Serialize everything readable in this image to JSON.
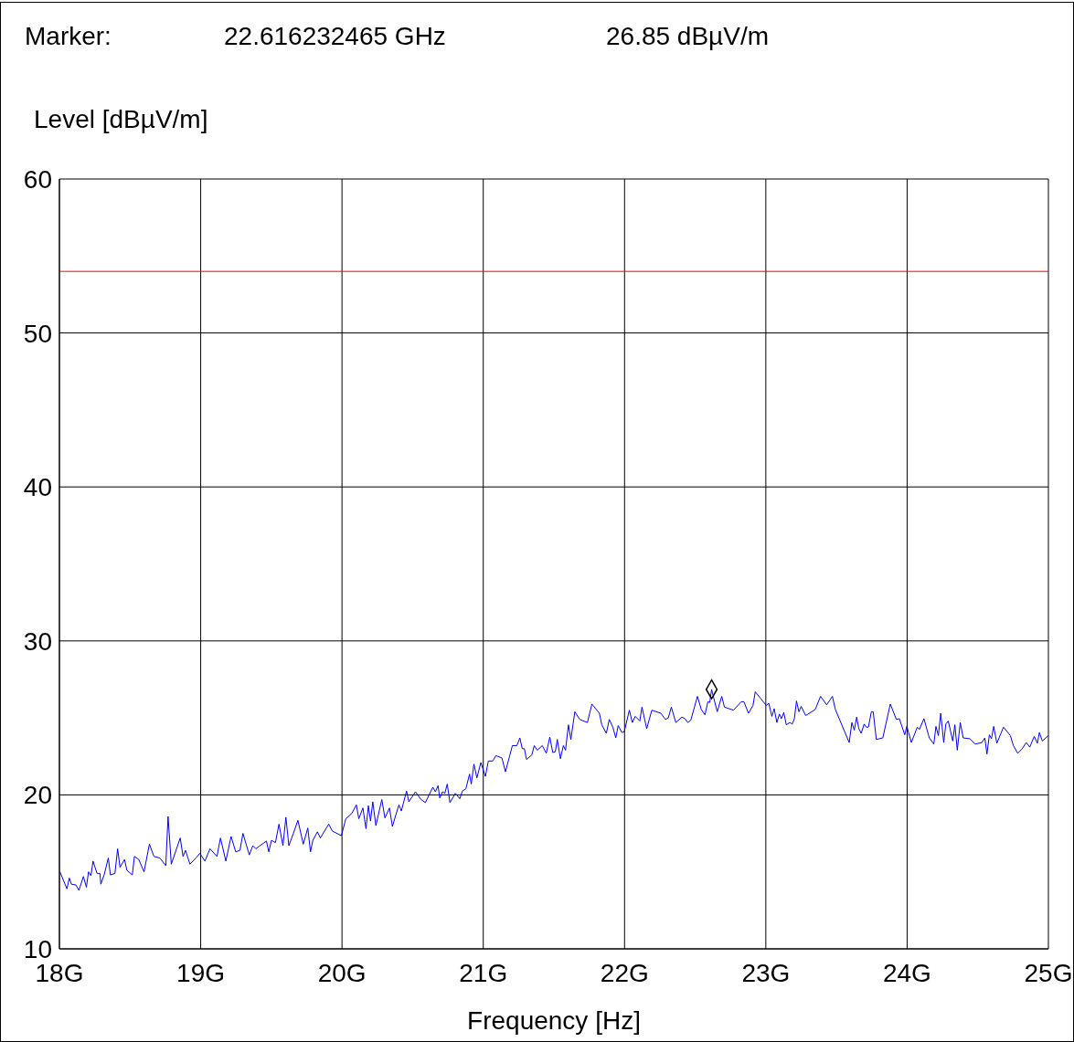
{
  "chart_data": {
    "type": "line",
    "xlabel": "Frequency [Hz]",
    "ylabel": "Level [dBµV/m]",
    "annotations": [
      "Marker:",
      "22.616232465 GHz",
      "26.85 dBµV/m"
    ],
    "xlim": [
      18,
      25
    ],
    "xticks": [
      {
        "value": 18,
        "label": "18G"
      },
      {
        "value": 19,
        "label": "19G"
      },
      {
        "value": 20,
        "label": "20G"
      },
      {
        "value": 21,
        "label": "21G"
      },
      {
        "value": 22,
        "label": "22G"
      },
      {
        "value": 23,
        "label": "23G"
      },
      {
        "value": 24,
        "label": "24G"
      },
      {
        "value": 25,
        "label": "25G"
      }
    ],
    "ylim": [
      10,
      60
    ],
    "yticks": [
      10,
      20,
      30,
      40,
      50,
      60
    ],
    "grid": true,
    "ref_lines": [
      {
        "axis": "y",
        "value": 54,
        "color": "#ff0000"
      }
    ],
    "series": [
      {
        "type": "line",
        "color": "#0000ff",
        "marker": "none",
        "x": [
          18.004,
          18.053,
          18.07,
          18.085,
          18.117,
          18.138,
          18.17,
          18.191,
          18.206,
          18.223,
          18.238,
          18.266,
          18.287,
          18.293,
          18.318,
          18.346,
          18.361,
          18.393,
          18.412,
          18.429,
          18.461,
          18.478,
          18.516,
          18.531,
          18.562,
          18.599,
          18.637,
          18.669,
          18.711,
          18.753,
          18.769,
          18.792,
          18.855,
          18.875,
          18.892,
          18.924,
          18.966,
          18.994,
          19.03,
          19.066,
          19.115,
          19.14,
          19.178,
          19.215,
          19.248,
          19.278,
          19.299,
          19.344,
          19.369,
          19.39,
          19.465,
          19.482,
          19.501,
          19.529,
          19.554,
          19.582,
          19.603,
          19.624,
          19.656,
          19.688,
          19.726,
          19.758,
          19.777,
          19.794,
          19.826,
          19.847,
          19.906,
          19.932,
          19.996,
          20.027,
          20.07,
          20.102,
          20.119,
          20.148,
          20.17,
          20.187,
          20.202,
          20.218,
          20.24,
          20.282,
          20.304,
          20.336,
          20.357,
          20.378,
          20.403,
          20.42,
          20.457,
          20.473,
          20.52,
          20.559,
          20.59,
          20.643,
          20.661,
          20.68,
          20.692,
          20.712,
          20.728,
          20.745,
          20.764,
          20.803,
          20.834,
          20.852,
          20.877,
          20.903,
          20.915,
          20.934,
          20.955,
          20.983,
          21.015,
          21.036,
          21.068,
          21.089,
          21.132,
          21.157,
          21.206,
          21.238,
          21.259,
          21.276,
          21.291,
          21.306,
          21.344,
          21.361,
          21.382,
          21.418,
          21.446,
          21.471,
          21.492,
          21.51,
          21.524,
          21.546,
          21.567,
          21.582,
          21.603,
          21.62,
          21.648,
          21.683,
          21.737,
          21.769,
          21.822,
          21.839,
          21.871,
          21.892,
          21.917,
          21.938,
          21.955,
          21.981,
          21.998,
          22.034,
          22.055,
          22.076,
          22.108,
          22.123,
          22.157,
          22.193,
          22.257,
          22.289,
          22.31,
          22.331,
          22.363,
          22.406,
          22.427,
          22.448,
          22.469,
          22.516,
          22.543,
          22.569,
          22.59,
          22.603,
          22.616,
          22.656,
          22.688,
          22.707,
          22.771,
          22.826,
          22.845,
          22.877,
          22.909,
          22.925,
          22.964,
          23.004,
          23.021,
          23.043,
          23.059,
          23.078,
          23.096,
          23.11,
          23.127,
          23.145,
          23.17,
          23.187,
          23.202,
          23.217,
          23.234,
          23.25,
          23.282,
          23.35,
          23.387,
          23.431,
          23.471,
          23.492,
          23.59,
          23.609,
          23.626,
          23.643,
          23.658,
          23.675,
          23.696,
          23.711,
          23.726,
          23.747,
          23.76,
          23.782,
          23.828,
          23.881,
          23.924,
          23.945,
          23.983,
          23.998,
          24.03,
          24.072,
          24.087,
          24.119,
          24.157,
          24.189,
          24.204,
          24.221,
          24.238,
          24.259,
          24.274,
          24.291,
          24.323,
          24.338,
          24.355,
          24.376,
          24.397,
          24.444,
          24.482,
          24.529,
          24.55,
          24.565,
          24.582,
          24.597,
          24.613,
          24.635,
          24.682,
          24.731,
          24.752,
          24.783,
          24.815,
          24.843,
          24.868,
          24.9,
          24.922,
          24.936,
          24.957,
          25.0
        ],
        "values": [
          15.0,
          13.9,
          14.6,
          14.2,
          14.15,
          13.8,
          14.7,
          14.0,
          15.0,
          14.75,
          15.7,
          14.9,
          14.9,
          14.2,
          14.85,
          15.9,
          14.8,
          14.9,
          16.5,
          15.3,
          15.8,
          15.1,
          14.8,
          16.0,
          15.8,
          15.0,
          16.8,
          16.0,
          15.9,
          15.4,
          18.6,
          15.5,
          17.2,
          16.0,
          16.4,
          15.5,
          15.9,
          16.2,
          15.7,
          16.5,
          16.0,
          17.2,
          15.7,
          17.3,
          16.3,
          16.4,
          17.5,
          16.1,
          16.7,
          16.5,
          17.0,
          16.3,
          17.05,
          16.9,
          18.1,
          16.7,
          18.55,
          16.7,
          17.5,
          18.35,
          16.8,
          17.85,
          16.3,
          17.05,
          17.6,
          17.2,
          18.1,
          17.65,
          17.35,
          18.45,
          18.8,
          19.35,
          18.45,
          19.15,
          17.8,
          19.3,
          18.3,
          19.55,
          18.0,
          19.7,
          18.5,
          19.15,
          17.95,
          18.6,
          19.35,
          18.95,
          20.25,
          19.55,
          20.2,
          19.7,
          19.5,
          20.5,
          20.2,
          20.6,
          19.8,
          20.2,
          20.1,
          20.7,
          19.5,
          20.1,
          19.75,
          20.25,
          20.4,
          21.35,
          20.7,
          22.0,
          21.1,
          22.1,
          21.2,
          22.2,
          22.2,
          22.55,
          22.4,
          21.5,
          23.2,
          23.2,
          23.7,
          23.0,
          23.0,
          22.3,
          22.6,
          23.2,
          22.9,
          23.2,
          22.7,
          23.75,
          22.75,
          22.8,
          23.6,
          22.35,
          23.2,
          22.9,
          24.55,
          23.6,
          25.4,
          24.9,
          24.7,
          25.9,
          25.3,
          24.55,
          24.0,
          24.9,
          24.4,
          23.7,
          24.5,
          24.05,
          24.1,
          25.5,
          24.7,
          25.1,
          24.8,
          25.7,
          24.3,
          25.5,
          25.3,
          24.9,
          25.0,
          25.7,
          24.7,
          25.05,
          24.95,
          24.7,
          24.85,
          26.4,
          25.55,
          25.2,
          26.05,
          26.0,
          26.85,
          25.4,
          26.4,
          25.7,
          25.5,
          26.05,
          26.05,
          25.3,
          25.8,
          26.7,
          26.25,
          25.8,
          25.95,
          25.1,
          25.6,
          24.7,
          25.25,
          24.95,
          25.35,
          24.55,
          24.7,
          24.6,
          24.95,
          26.1,
          25.4,
          25.75,
          25.15,
          25.55,
          26.4,
          25.85,
          26.4,
          25.55,
          23.4,
          24.7,
          24.2,
          25.05,
          24.3,
          24.0,
          24.6,
          24.4,
          24.4,
          25.4,
          25.4,
          23.6,
          23.7,
          25.9,
          24.9,
          24.95,
          23.9,
          24.45,
          23.4,
          24.4,
          24.25,
          24.95,
          23.7,
          23.3,
          24.45,
          23.85,
          25.3,
          23.4,
          24.6,
          24.8,
          23.5,
          24.55,
          22.9,
          24.7,
          23.7,
          23.65,
          23.3,
          23.4,
          23.7,
          22.65,
          23.9,
          23.65,
          24.45,
          23.35,
          24.4,
          23.85,
          23.2,
          22.7,
          23.0,
          23.4,
          23.1,
          23.8,
          23.35,
          24.05,
          23.5,
          23.85
        ]
      },
      {
        "type": "scatter",
        "color": "#000000",
        "marker": "diamond",
        "x": [
          22.616232465
        ],
        "values": [
          26.85
        ]
      }
    ]
  }
}
